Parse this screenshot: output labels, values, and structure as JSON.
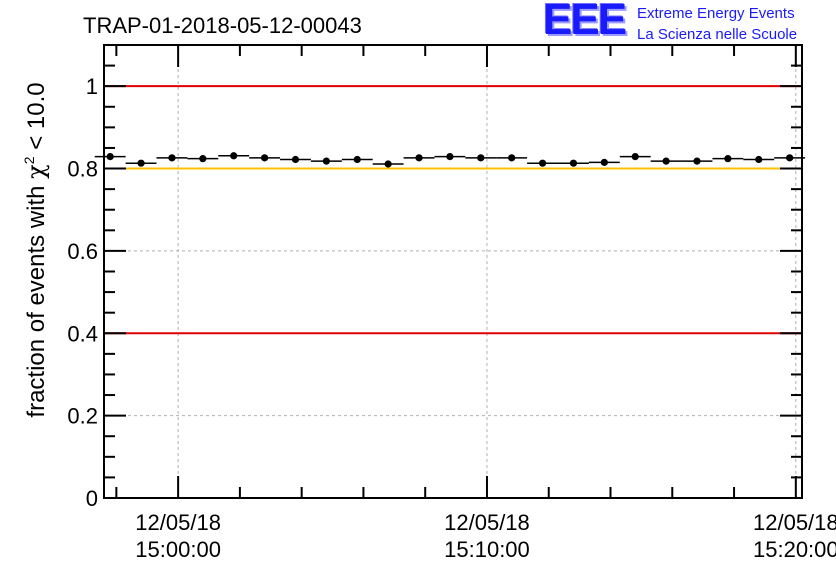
{
  "chart_data": {
    "type": "scatter",
    "title": "TRAP-01-2018-05-12-00043",
    "ylabel": "fraction of events with χ² < 10.0",
    "ylabel_main": "fraction of events with ",
    "ylabel_chi": "χ",
    "ylabel_sup": "2",
    "ylabel_tail": " < 10.0",
    "xlabel": "",
    "ylim": [
      0,
      1.1
    ],
    "xlim_minutes": [
      -2.4,
      20.2
    ],
    "grid": true,
    "yticks": [
      {
        "value": 0,
        "label": "0"
      },
      {
        "value": 0.2,
        "label": "0.2"
      },
      {
        "value": 0.4,
        "label": "0.4"
      },
      {
        "value": 0.6,
        "label": "0.6"
      },
      {
        "value": 0.8,
        "label": "0.8"
      },
      {
        "value": 1,
        "label": "1"
      }
    ],
    "xticks": [
      {
        "value": 0,
        "date": "12/05/18",
        "time": "15:00:00"
      },
      {
        "value": 10,
        "date": "12/05/18",
        "time": "15:10:00"
      },
      {
        "value": 20,
        "date": "12/05/18",
        "time": "15:20:00"
      }
    ],
    "reference_lines": [
      {
        "y": 1.0,
        "color": "#e00000"
      },
      {
        "y": 0.8,
        "color": "#ffc000"
      },
      {
        "y": 0.4,
        "color": "#e00000"
      }
    ],
    "point_color": "#000000",
    "bin_width_minutes": 1.0,
    "x_minutes": [
      -2.2,
      -1.2,
      -0.2,
      0.8,
      1.8,
      2.8,
      3.8,
      4.8,
      5.8,
      6.8,
      7.8,
      8.8,
      9.8,
      10.8,
      11.8,
      12.8,
      13.8,
      14.8,
      15.8,
      16.8,
      17.8,
      18.8,
      19.8
    ],
    "values": [
      0.829,
      0.813,
      0.826,
      0.824,
      0.831,
      0.826,
      0.822,
      0.818,
      0.822,
      0.811,
      0.826,
      0.829,
      0.826,
      0.826,
      0.813,
      0.813,
      0.815,
      0.829,
      0.818,
      0.818,
      0.824,
      0.822,
      0.826
    ]
  },
  "logo": {
    "letters": "EEE",
    "line1": "Extreme Energy Events",
    "line2": "La Scienza nelle Scuole",
    "color": "#1a1aff"
  }
}
